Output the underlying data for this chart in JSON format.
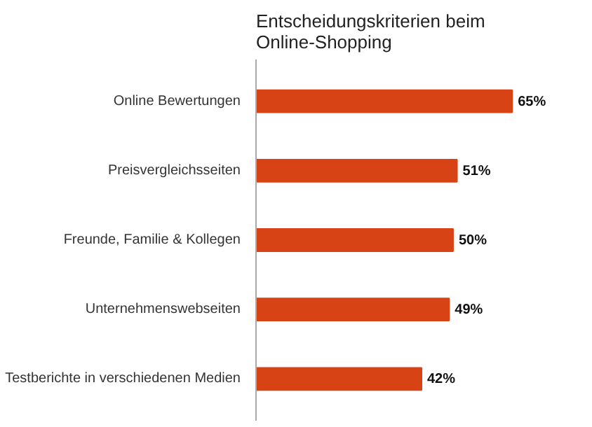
{
  "chart_data": {
    "type": "bar",
    "orientation": "horizontal",
    "title": "Entscheidungskriterien beim\nOnline-Shopping",
    "categories": [
      "Online Bewertungen",
      "Preisvergleichsseiten",
      "Freunde, Familie & Kollegen",
      "Unternehmenswebseiten",
      "Testberichte in verschiedenen Medien"
    ],
    "values": [
      65,
      51,
      50,
      49,
      42
    ],
    "value_labels": [
      "65%",
      "51%",
      "50%",
      "49%",
      "42%"
    ],
    "color": "#d84315",
    "grid": false
  }
}
